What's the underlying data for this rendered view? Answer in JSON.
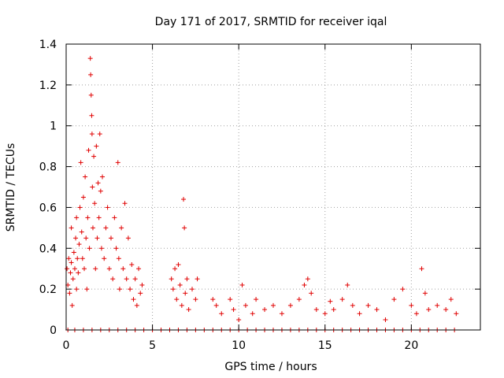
{
  "chart_data": {
    "type": "scatter",
    "title": "Day 171 of 2017, SRMTID for receiver iqal",
    "xlabel": "GPS time / hours",
    "ylabel": "SRMTID / TECUs",
    "xlim": [
      0,
      24
    ],
    "ylim": [
      0,
      1.4
    ],
    "xticks": [
      0,
      5,
      10,
      15,
      20
    ],
    "xtick_labels": [
      "0",
      "5",
      "10",
      "15",
      "20"
    ],
    "yticks": [
      0,
      0.2,
      0.4,
      0.6,
      0.8,
      1,
      1.2,
      1.4
    ],
    "ytick_labels": [
      "0",
      "0.2",
      "0.4",
      "0.6",
      "0.8",
      "1",
      "1.2",
      "1.4"
    ],
    "grid": true,
    "marker": "+",
    "series": [
      {
        "name": "SRMTID",
        "color": "#e00000",
        "points": [
          [
            0.05,
            0.3
          ],
          [
            0.1,
            0.22
          ],
          [
            0.15,
            0.35
          ],
          [
            0.2,
            0.18
          ],
          [
            0.25,
            0.28
          ],
          [
            0.3,
            0.33
          ],
          [
            0.3,
            0.5
          ],
          [
            0.35,
            0.12
          ],
          [
            0.4,
            0.25
          ],
          [
            0.45,
            0.38
          ],
          [
            0.5,
            0.3
          ],
          [
            0.55,
            0.45
          ],
          [
            0.6,
            0.2
          ],
          [
            0.6,
            0.55
          ],
          [
            0.65,
            0.35
          ],
          [
            0.7,
            0.28
          ],
          [
            0.75,
            0.42
          ],
          [
            0.8,
            0.6
          ],
          [
            0.85,
            0.82
          ],
          [
            0.9,
            0.48
          ],
          [
            0.95,
            0.35
          ],
          [
            1.0,
            0.65
          ],
          [
            1.05,
            0.3
          ],
          [
            1.1,
            0.75
          ],
          [
            1.15,
            0.45
          ],
          [
            1.2,
            0.2
          ],
          [
            1.25,
            0.55
          ],
          [
            1.3,
            0.88
          ],
          [
            1.35,
            0.4
          ],
          [
            1.4,
            1.33
          ],
          [
            1.42,
            1.25
          ],
          [
            1.45,
            1.15
          ],
          [
            1.48,
            1.05
          ],
          [
            1.5,
            0.96
          ],
          [
            1.52,
            0.7
          ],
          [
            1.55,
            0.5
          ],
          [
            1.6,
            0.85
          ],
          [
            1.65,
            0.62
          ],
          [
            1.7,
            0.3
          ],
          [
            1.75,
            0.9
          ],
          [
            1.8,
            0.45
          ],
          [
            1.85,
            0.72
          ],
          [
            1.9,
            0.55
          ],
          [
            1.95,
            0.96
          ],
          [
            2.0,
            0.68
          ],
          [
            2.05,
            0.4
          ],
          [
            2.1,
            0.75
          ],
          [
            2.2,
            0.35
          ],
          [
            2.3,
            0.5
          ],
          [
            2.4,
            0.6
          ],
          [
            2.5,
            0.3
          ],
          [
            2.6,
            0.45
          ],
          [
            2.7,
            0.25
          ],
          [
            2.8,
            0.55
          ],
          [
            2.9,
            0.4
          ],
          [
            3.0,
            0.82
          ],
          [
            3.05,
            0.35
          ],
          [
            3.1,
            0.2
          ],
          [
            3.2,
            0.5
          ],
          [
            3.3,
            0.3
          ],
          [
            3.4,
            0.62
          ],
          [
            3.5,
            0.25
          ],
          [
            3.6,
            0.45
          ],
          [
            3.7,
            0.2
          ],
          [
            3.8,
            0.32
          ],
          [
            3.9,
            0.15
          ],
          [
            4.0,
            0.25
          ],
          [
            4.1,
            0.12
          ],
          [
            4.2,
            0.3
          ],
          [
            4.3,
            0.18
          ],
          [
            4.4,
            0.22
          ],
          [
            6.1,
            0.25
          ],
          [
            6.2,
            0.2
          ],
          [
            6.3,
            0.3
          ],
          [
            6.4,
            0.15
          ],
          [
            6.5,
            0.32
          ],
          [
            6.6,
            0.22
          ],
          [
            6.7,
            0.12
          ],
          [
            6.8,
            0.64
          ],
          [
            6.85,
            0.5
          ],
          [
            6.9,
            0.18
          ],
          [
            7.0,
            0.25
          ],
          [
            7.1,
            0.1
          ],
          [
            7.3,
            0.2
          ],
          [
            7.5,
            0.15
          ],
          [
            7.6,
            0.25
          ],
          [
            8.5,
            0.15
          ],
          [
            8.7,
            0.12
          ],
          [
            9.0,
            0.08
          ],
          [
            9.5,
            0.15
          ],
          [
            9.7,
            0.1
          ],
          [
            10.0,
            0.05
          ],
          [
            10.2,
            0.22
          ],
          [
            10.4,
            0.12
          ],
          [
            10.8,
            0.08
          ],
          [
            11.0,
            0.15
          ],
          [
            11.5,
            0.1
          ],
          [
            12.0,
            0.12
          ],
          [
            12.5,
            0.08
          ],
          [
            13.0,
            0.12
          ],
          [
            13.5,
            0.15
          ],
          [
            13.8,
            0.22
          ],
          [
            14.0,
            0.25
          ],
          [
            14.2,
            0.18
          ],
          [
            14.5,
            0.1
          ],
          [
            15.0,
            0.08
          ],
          [
            15.3,
            0.14
          ],
          [
            15.5,
            0.1
          ],
          [
            16.0,
            0.15
          ],
          [
            16.3,
            0.22
          ],
          [
            16.6,
            0.12
          ],
          [
            17.0,
            0.08
          ],
          [
            17.5,
            0.12
          ],
          [
            18.0,
            0.1
          ],
          [
            18.5,
            0.05
          ],
          [
            19.0,
            0.15
          ],
          [
            19.5,
            0.2
          ],
          [
            20.0,
            0.12
          ],
          [
            20.3,
            0.08
          ],
          [
            20.6,
            0.3
          ],
          [
            20.8,
            0.18
          ],
          [
            21.0,
            0.1
          ],
          [
            21.5,
            0.12
          ],
          [
            22.0,
            0.1
          ],
          [
            22.3,
            0.15
          ],
          [
            22.6,
            0.08
          ],
          [
            0.1,
            0
          ],
          [
            0.5,
            0
          ],
          [
            1.0,
            0
          ],
          [
            1.5,
            0
          ],
          [
            2.0,
            0
          ],
          [
            2.5,
            0
          ],
          [
            3.0,
            0
          ],
          [
            3.5,
            0
          ],
          [
            4.0,
            0
          ],
          [
            4.5,
            0
          ],
          [
            5.0,
            0
          ],
          [
            5.5,
            0
          ],
          [
            6.0,
            0
          ],
          [
            6.5,
            0
          ],
          [
            7.0,
            0
          ],
          [
            7.5,
            0
          ],
          [
            8.0,
            0
          ],
          [
            8.5,
            0
          ],
          [
            9.0,
            0
          ],
          [
            9.5,
            0
          ],
          [
            10.0,
            0
          ],
          [
            10.5,
            0
          ],
          [
            11.0,
            0
          ],
          [
            11.5,
            0
          ],
          [
            12.0,
            0
          ],
          [
            12.5,
            0
          ],
          [
            13.0,
            0
          ],
          [
            13.5,
            0
          ],
          [
            14.0,
            0
          ],
          [
            14.5,
            0
          ],
          [
            15.0,
            0
          ],
          [
            15.5,
            0
          ],
          [
            16.0,
            0
          ],
          [
            16.5,
            0
          ],
          [
            17.0,
            0
          ],
          [
            17.5,
            0
          ],
          [
            18.0,
            0
          ],
          [
            18.5,
            0
          ],
          [
            19.0,
            0
          ],
          [
            19.5,
            0
          ],
          [
            20.0,
            0
          ],
          [
            20.5,
            0
          ],
          [
            21.0,
            0
          ],
          [
            21.5,
            0
          ],
          [
            22.0,
            0
          ],
          [
            22.5,
            0
          ]
        ]
      }
    ]
  }
}
